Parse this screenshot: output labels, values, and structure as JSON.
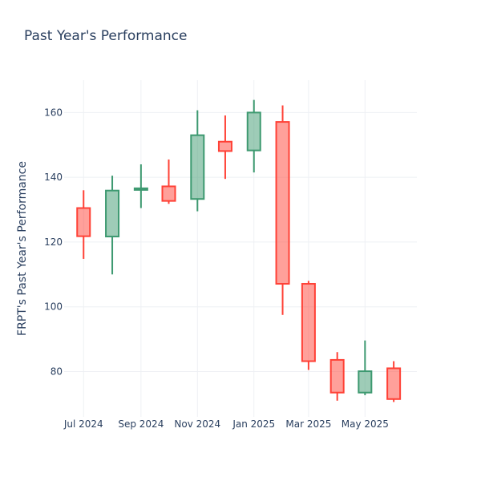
{
  "chart_data": {
    "type": "candlestick",
    "title": "Past Year's Performance",
    "ylabel": "FRPT's Past Year's Performance",
    "xlabel": "",
    "ylim": [
      66,
      170
    ],
    "y_ticks": [
      80,
      100,
      120,
      140,
      160
    ],
    "x_range": [
      "2024-06-10",
      "2025-06-26"
    ],
    "x_ticks": [
      {
        "date": "2024-07-01",
        "label": "Jul 2024"
      },
      {
        "date": "2024-09-01",
        "label": "Sep 2024"
      },
      {
        "date": "2024-11-01",
        "label": "Nov 2024"
      },
      {
        "date": "2025-01-01",
        "label": "Jan 2025"
      },
      {
        "date": "2025-03-01",
        "label": "Mar 2025"
      },
      {
        "date": "2025-05-01",
        "label": "May 2025"
      }
    ],
    "grid": true,
    "colors": {
      "increasing": "#3d9970",
      "decreasing": "#ff4136"
    },
    "candles": [
      {
        "date": "2024-07-01",
        "open": 130.5,
        "high": 136.0,
        "low": 114.8,
        "close": 121.8
      },
      {
        "date": "2024-08-01",
        "open": 121.7,
        "high": 140.5,
        "low": 110.0,
        "close": 135.9
      },
      {
        "date": "2024-09-01",
        "open": 136.1,
        "high": 144.0,
        "low": 130.5,
        "close": 136.6
      },
      {
        "date": "2024-10-01",
        "open": 137.2,
        "high": 145.5,
        "low": 131.8,
        "close": 132.7
      },
      {
        "date": "2024-11-01",
        "open": 133.3,
        "high": 160.7,
        "low": 129.5,
        "close": 153.0
      },
      {
        "date": "2024-12-01",
        "open": 151.0,
        "high": 159.1,
        "low": 139.5,
        "close": 148.1
      },
      {
        "date": "2025-01-01",
        "open": 148.3,
        "high": 163.9,
        "low": 141.5,
        "close": 160.0
      },
      {
        "date": "2025-02-01",
        "open": 157.1,
        "high": 162.2,
        "low": 97.5,
        "close": 107.1
      },
      {
        "date": "2025-03-01",
        "open": 107.1,
        "high": 108.0,
        "low": 80.5,
        "close": 83.2
      },
      {
        "date": "2025-04-01",
        "open": 83.6,
        "high": 86.0,
        "low": 71.0,
        "close": 73.5
      },
      {
        "date": "2025-05-01",
        "open": 73.5,
        "high": 89.6,
        "low": 72.7,
        "close": 80.1
      },
      {
        "date": "2025-06-01",
        "open": 81.0,
        "high": 83.2,
        "low": 70.6,
        "close": 71.5
      }
    ]
  }
}
